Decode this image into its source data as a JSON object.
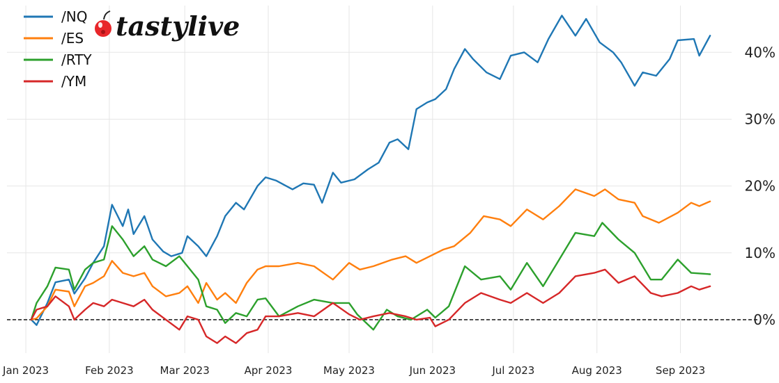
{
  "brand": {
    "logo_text": "tastylive"
  },
  "chart_data": {
    "type": "line",
    "title": "",
    "xlabel": "",
    "ylabel": "",
    "y_axis_side": "right",
    "ylim": [
      -5,
      47
    ],
    "y_ticks": [
      0,
      10,
      20,
      30,
      40
    ],
    "y_tick_labels": [
      "0%",
      "10%",
      "20%",
      "30%",
      "40%"
    ],
    "x_ticks": [
      "2023-01-01",
      "2023-02-01",
      "2023-03-01",
      "2023-04-01",
      "2023-05-01",
      "2023-06-01",
      "2023-07-01",
      "2023-08-01",
      "2023-09-01"
    ],
    "x_tick_labels": [
      "Jan 2023",
      "Feb 2023",
      "Mar 2023",
      "Apr 2023",
      "May 2023",
      "Jun 2023",
      "Jul 2023",
      "Aug 2023",
      "Sep 2023"
    ],
    "xlim": [
      "2022-12-25",
      "2023-09-20"
    ],
    "grid": true,
    "reference_line": {
      "y": 0,
      "style": "dashed",
      "color": "#000000"
    },
    "legend": {
      "placement": "top-left"
    },
    "series": [
      {
        "name": "/NQ",
        "color": "#1f77b4",
        "x": [
          "2023-01-03",
          "2023-01-05",
          "2023-01-09",
          "2023-01-12",
          "2023-01-17",
          "2023-01-19",
          "2023-01-23",
          "2023-01-26",
          "2023-01-30",
          "2023-02-02",
          "2023-02-06",
          "2023-02-08",
          "2023-02-10",
          "2023-02-14",
          "2023-02-17",
          "2023-02-21",
          "2023-02-24",
          "2023-02-28",
          "2023-03-02",
          "2023-03-06",
          "2023-03-09",
          "2023-03-13",
          "2023-03-16",
          "2023-03-20",
          "2023-03-23",
          "2023-03-28",
          "2023-03-31",
          "2023-04-04",
          "2023-04-10",
          "2023-04-14",
          "2023-04-18",
          "2023-04-21",
          "2023-04-25",
          "2023-04-28",
          "2023-05-03",
          "2023-05-08",
          "2023-05-12",
          "2023-05-16",
          "2023-05-19",
          "2023-05-23",
          "2023-05-26",
          "2023-05-30",
          "2023-06-02",
          "2023-06-06",
          "2023-06-09",
          "2023-06-13",
          "2023-06-16",
          "2023-06-21",
          "2023-06-26",
          "2023-06-30",
          "2023-07-05",
          "2023-07-10",
          "2023-07-14",
          "2023-07-19",
          "2023-07-24",
          "2023-07-28",
          "2023-08-02",
          "2023-08-07",
          "2023-08-10",
          "2023-08-15",
          "2023-08-18",
          "2023-08-23",
          "2023-08-28",
          "2023-08-31",
          "2023-09-06",
          "2023-09-08",
          "2023-09-12"
        ],
        "values": [
          0,
          -0.8,
          2.5,
          5.6,
          6.0,
          3.9,
          6.2,
          8.5,
          11.0,
          17.2,
          14.0,
          16.5,
          12.8,
          15.5,
          12.0,
          10.2,
          9.5,
          10.0,
          12.5,
          11.0,
          9.5,
          12.5,
          15.5,
          17.5,
          16.5,
          20.0,
          21.3,
          20.8,
          19.5,
          20.4,
          20.2,
          17.5,
          22.0,
          20.5,
          21.0,
          22.5,
          23.5,
          26.5,
          27.0,
          25.5,
          31.5,
          32.5,
          33.0,
          34.5,
          37.5,
          40.5,
          39.0,
          37.0,
          36.0,
          39.5,
          40.0,
          38.5,
          42.0,
          45.5,
          42.5,
          45.0,
          41.5,
          40.0,
          38.5,
          35.0,
          37.0,
          36.5,
          39.0,
          41.8,
          42.0,
          39.5,
          42.5
        ]
      },
      {
        "name": "/ES",
        "color": "#ff7f0e",
        "x": [
          "2023-01-03",
          "2023-01-05",
          "2023-01-09",
          "2023-01-12",
          "2023-01-17",
          "2023-01-19",
          "2023-01-23",
          "2023-01-26",
          "2023-01-30",
          "2023-02-02",
          "2023-02-06",
          "2023-02-10",
          "2023-02-14",
          "2023-02-17",
          "2023-02-22",
          "2023-02-27",
          "2023-03-02",
          "2023-03-06",
          "2023-03-09",
          "2023-03-13",
          "2023-03-16",
          "2023-03-20",
          "2023-03-24",
          "2023-03-28",
          "2023-03-31",
          "2023-04-05",
          "2023-04-12",
          "2023-04-18",
          "2023-04-25",
          "2023-05-01",
          "2023-05-05",
          "2023-05-10",
          "2023-05-17",
          "2023-05-22",
          "2023-05-26",
          "2023-05-31",
          "2023-06-05",
          "2023-06-09",
          "2023-06-15",
          "2023-06-20",
          "2023-06-26",
          "2023-06-30",
          "2023-07-06",
          "2023-07-12",
          "2023-07-18",
          "2023-07-24",
          "2023-07-31",
          "2023-08-04",
          "2023-08-09",
          "2023-08-15",
          "2023-08-18",
          "2023-08-24",
          "2023-08-31",
          "2023-09-05",
          "2023-09-08",
          "2023-09-12"
        ],
        "values": [
          0,
          0.2,
          2.0,
          4.5,
          4.2,
          2.0,
          5.0,
          5.5,
          6.5,
          8.8,
          7.0,
          6.5,
          7.0,
          5.0,
          3.5,
          4.0,
          5.0,
          2.5,
          5.5,
          3.0,
          4.0,
          2.5,
          5.5,
          7.5,
          8.0,
          8.0,
          8.5,
          8.0,
          6.0,
          8.5,
          7.5,
          8.0,
          9.0,
          9.5,
          8.5,
          9.5,
          10.5,
          11.0,
          13.0,
          15.5,
          15.0,
          14.0,
          16.5,
          15.0,
          17.0,
          19.5,
          18.5,
          19.5,
          18.0,
          17.5,
          15.5,
          14.5,
          16.0,
          17.5,
          17.0,
          17.7
        ]
      },
      {
        "name": "/RTY",
        "color": "#2ca02c",
        "x": [
          "2023-01-03",
          "2023-01-05",
          "2023-01-09",
          "2023-01-12",
          "2023-01-17",
          "2023-01-19",
          "2023-01-23",
          "2023-01-26",
          "2023-01-30",
          "2023-02-02",
          "2023-02-06",
          "2023-02-10",
          "2023-02-14",
          "2023-02-17",
          "2023-02-22",
          "2023-02-27",
          "2023-03-02",
          "2023-03-06",
          "2023-03-09",
          "2023-03-13",
          "2023-03-16",
          "2023-03-20",
          "2023-03-24",
          "2023-03-28",
          "2023-03-31",
          "2023-04-05",
          "2023-04-12",
          "2023-04-18",
          "2023-04-25",
          "2023-05-01",
          "2023-05-04",
          "2023-05-10",
          "2023-05-15",
          "2023-05-19",
          "2023-05-24",
          "2023-05-30",
          "2023-06-02",
          "2023-06-07",
          "2023-06-13",
          "2023-06-19",
          "2023-06-26",
          "2023-06-30",
          "2023-07-06",
          "2023-07-12",
          "2023-07-18",
          "2023-07-24",
          "2023-07-31",
          "2023-08-03",
          "2023-08-09",
          "2023-08-15",
          "2023-08-21",
          "2023-08-25",
          "2023-08-31",
          "2023-09-05",
          "2023-09-12"
        ],
        "values": [
          0,
          2.5,
          5.0,
          7.8,
          7.5,
          4.5,
          7.5,
          8.5,
          9.0,
          14.0,
          12.0,
          9.5,
          11.0,
          9.0,
          8.0,
          9.5,
          8.0,
          6.0,
          2.0,
          1.5,
          -0.5,
          1.0,
          0.5,
          3.0,
          3.2,
          0.5,
          2.0,
          3.0,
          2.5,
          2.5,
          0.8,
          -1.5,
          1.5,
          0.5,
          0.0,
          1.5,
          0.3,
          2.0,
          8.0,
          6.0,
          6.5,
          4.5,
          8.5,
          5.0,
          9.0,
          13.0,
          12.5,
          14.5,
          12.0,
          10.0,
          6.0,
          6.0,
          9.0,
          7.0,
          6.8
        ]
      },
      {
        "name": "/YM",
        "color": "#d62728",
        "x": [
          "2023-01-03",
          "2023-01-05",
          "2023-01-09",
          "2023-01-12",
          "2023-01-17",
          "2023-01-19",
          "2023-01-23",
          "2023-01-26",
          "2023-01-30",
          "2023-02-02",
          "2023-02-06",
          "2023-02-10",
          "2023-02-14",
          "2023-02-17",
          "2023-02-22",
          "2023-02-27",
          "2023-03-02",
          "2023-03-06",
          "2023-03-09",
          "2023-03-13",
          "2023-03-16",
          "2023-03-20",
          "2023-03-24",
          "2023-03-28",
          "2023-03-31",
          "2023-04-05",
          "2023-04-12",
          "2023-04-18",
          "2023-04-25",
          "2023-05-01",
          "2023-05-05",
          "2023-05-10",
          "2023-05-16",
          "2023-05-22",
          "2023-05-26",
          "2023-05-31",
          "2023-06-02",
          "2023-06-07",
          "2023-06-13",
          "2023-06-19",
          "2023-06-26",
          "2023-06-30",
          "2023-07-06",
          "2023-07-12",
          "2023-07-18",
          "2023-07-24",
          "2023-07-31",
          "2023-08-04",
          "2023-08-09",
          "2023-08-15",
          "2023-08-21",
          "2023-08-25",
          "2023-08-31",
          "2023-09-05",
          "2023-09-08",
          "2023-09-12"
        ],
        "values": [
          0,
          1.5,
          2.0,
          3.5,
          2.0,
          0.0,
          1.5,
          2.5,
          2.0,
          3.0,
          2.5,
          2.0,
          3.0,
          1.5,
          0.0,
          -1.5,
          0.5,
          0.0,
          -2.5,
          -3.5,
          -2.5,
          -3.5,
          -2.0,
          -1.5,
          0.5,
          0.5,
          1.0,
          0.5,
          2.5,
          0.8,
          0.0,
          0.5,
          1.0,
          0.5,
          0.0,
          0.3,
          -1.0,
          0.0,
          2.5,
          4.0,
          3.0,
          2.5,
          4.0,
          2.5,
          4.0,
          6.5,
          7.0,
          7.5,
          5.5,
          6.5,
          4.0,
          3.5,
          4.0,
          5.0,
          4.5,
          5.0
        ]
      }
    ]
  }
}
